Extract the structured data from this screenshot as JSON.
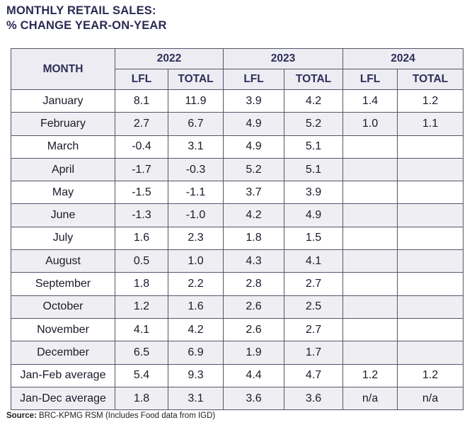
{
  "title": {
    "line1": "MONTHLY RETAIL SALES:",
    "line2": "% CHANGE YEAR-ON-YEAR"
  },
  "table": {
    "month_header": "MONTH",
    "years": [
      "2022",
      "2023",
      "2024"
    ],
    "subheaders": [
      "LFL",
      "TOTAL",
      "LFL",
      "TOTAL",
      "LFL",
      "TOTAL"
    ],
    "rows": [
      {
        "month": "January",
        "cells": [
          "8.1",
          "11.9",
          "3.9",
          "4.2",
          "1.4",
          "1.2"
        ]
      },
      {
        "month": "February",
        "cells": [
          "2.7",
          "6.7",
          "4.9",
          "5.2",
          "1.0",
          "1.1"
        ]
      },
      {
        "month": "March",
        "cells": [
          "-0.4",
          "3.1",
          "4.9",
          "5.1",
          "",
          ""
        ]
      },
      {
        "month": "April",
        "cells": [
          "-1.7",
          "-0.3",
          "5.2",
          "5.1",
          "",
          ""
        ]
      },
      {
        "month": "May",
        "cells": [
          "-1.5",
          "-1.1",
          "3.7",
          "3.9",
          "",
          ""
        ]
      },
      {
        "month": "June",
        "cells": [
          "-1.3",
          "-1.0",
          "4.2",
          "4.9",
          "",
          ""
        ]
      },
      {
        "month": "July",
        "cells": [
          "1.6",
          "2.3",
          "1.8",
          "1.5",
          "",
          ""
        ]
      },
      {
        "month": "August",
        "cells": [
          "0.5",
          "1.0",
          "4.3",
          "4.1",
          "",
          ""
        ]
      },
      {
        "month": "September",
        "cells": [
          "1.8",
          "2.2",
          "2.8",
          "2.7",
          "",
          ""
        ]
      },
      {
        "month": "October",
        "cells": [
          "1.2",
          "1.6",
          "2.6",
          "2.5",
          "",
          ""
        ]
      },
      {
        "month": "November",
        "cells": [
          "4.1",
          "4.2",
          "2.6",
          "2.7",
          "",
          ""
        ]
      },
      {
        "month": "December",
        "cells": [
          "6.5",
          "6.9",
          "1.9",
          "1.7",
          "",
          ""
        ]
      },
      {
        "month": "Jan-Feb average",
        "cells": [
          "5.4",
          "9.3",
          "4.4",
          "4.7",
          "1.2",
          "1.2"
        ]
      },
      {
        "month": "Jan-Dec average",
        "cells": [
          "1.8",
          "3.1",
          "3.6",
          "3.6",
          "n/a",
          "n/a"
        ]
      }
    ]
  },
  "source": {
    "label": "Source:",
    "text": " BRC-KPMG RSM (Includes Food data from IGD)"
  },
  "colors": {
    "header_text": "#2e2e5a",
    "header_bg": "#ececf2",
    "alt_row_bg": "#efeff3",
    "border": "#55556a"
  }
}
